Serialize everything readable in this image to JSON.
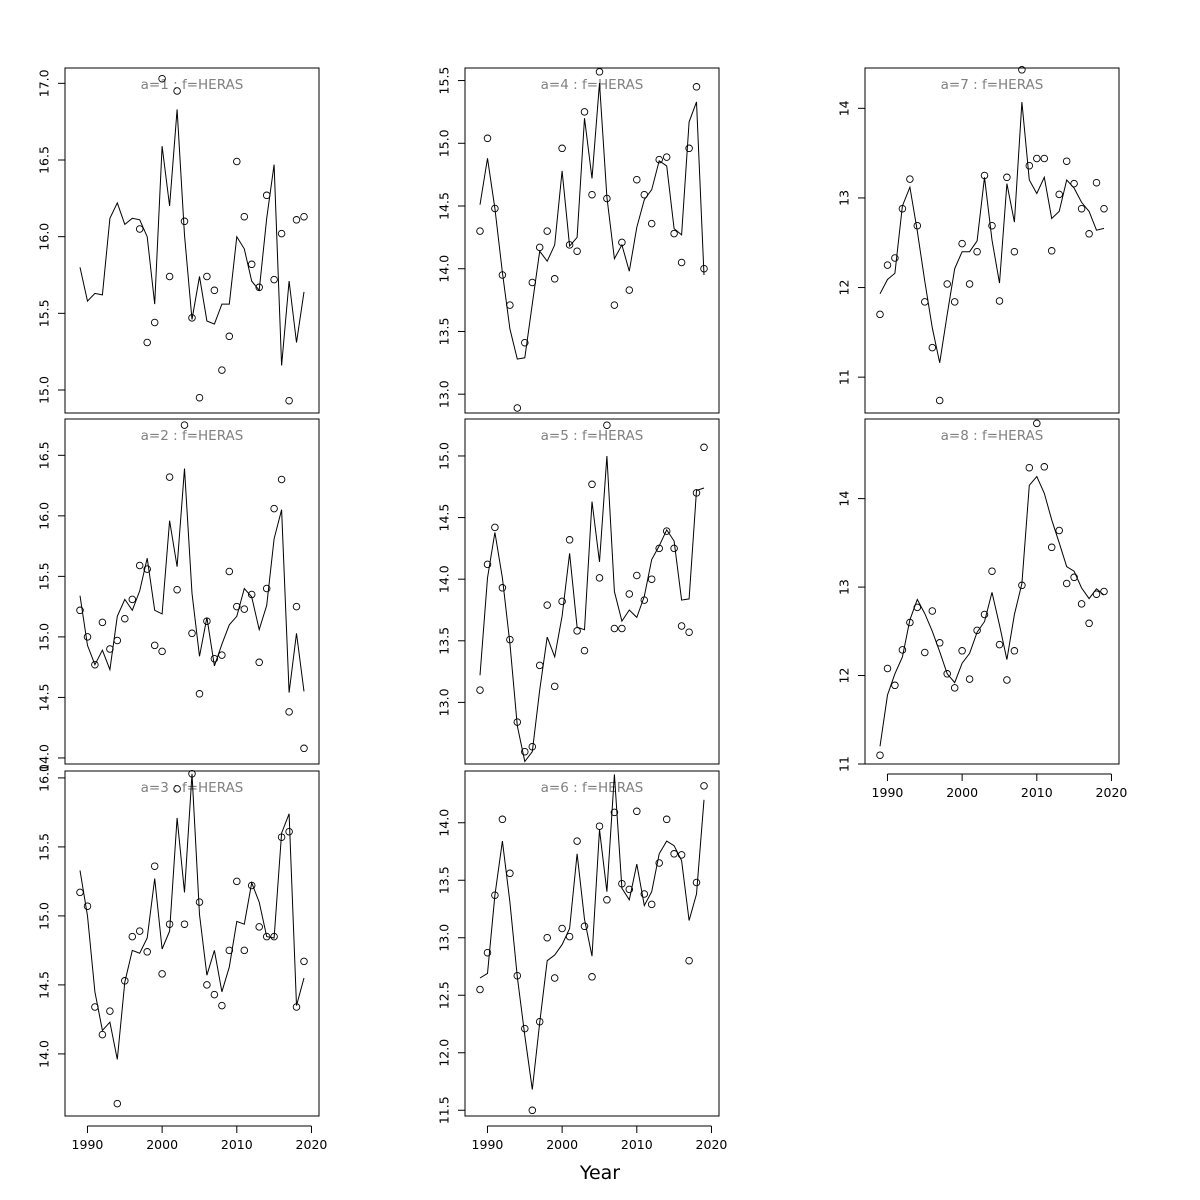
{
  "figure": {
    "xlabel": "Year",
    "x_ticks": [
      1990,
      2000,
      2010,
      2020
    ],
    "xlim": [
      1989,
      2019
    ]
  },
  "chart_data": [
    {
      "type": "scatter",
      "panel_label": "a=1 : f=HERAS",
      "years": [
        1989,
        1990,
        1991,
        1992,
        1993,
        1994,
        1995,
        1996,
        1997,
        1998,
        1999,
        2000,
        2001,
        2002,
        2003,
        2004,
        2005,
        2006,
        2007,
        2008,
        2009,
        2010,
        2011,
        2012,
        2013,
        2014,
        2015,
        2016,
        2017,
        2018,
        2019
      ],
      "observed": [
        null,
        null,
        null,
        null,
        null,
        null,
        null,
        null,
        16.05,
        15.31,
        15.44,
        17.03,
        15.74,
        16.95,
        16.1,
        15.47,
        14.95,
        15.74,
        15.65,
        15.13,
        15.35,
        16.49,
        16.13,
        15.82,
        15.67,
        16.27,
        15.72,
        16.02,
        14.93,
        16.11,
        16.13
      ],
      "fitted": [
        15.8,
        15.58,
        15.63,
        15.62,
        16.12,
        16.22,
        16.08,
        16.12,
        16.11,
        16.0,
        15.56,
        16.59,
        16.2,
        16.83,
        16.01,
        15.46,
        15.74,
        15.45,
        15.43,
        15.56,
        15.56,
        16.0,
        15.92,
        15.71,
        15.65,
        16.12,
        16.47,
        15.16,
        15.71,
        15.31,
        15.64
      ],
      "y_ticks": [
        15.0,
        15.5,
        16.0,
        16.5,
        17.0
      ],
      "y_tick_labels": [
        "15.0",
        "15.5",
        "16.0",
        "16.5",
        "17.0"
      ],
      "ylim": [
        14.85,
        17.1
      ]
    },
    {
      "type": "scatter",
      "panel_label": "a=2 : f=HERAS",
      "years": [
        1989,
        1990,
        1991,
        1992,
        1993,
        1994,
        1995,
        1996,
        1997,
        1998,
        1999,
        2000,
        2001,
        2002,
        2003,
        2004,
        2005,
        2006,
        2007,
        2008,
        2009,
        2010,
        2011,
        2012,
        2013,
        2014,
        2015,
        2016,
        2017,
        2018,
        2019
      ],
      "observed": [
        15.22,
        15.0,
        14.77,
        15.12,
        14.9,
        14.97,
        15.15,
        15.31,
        15.59,
        15.56,
        14.93,
        14.88,
        16.32,
        15.39,
        16.75,
        15.03,
        14.53,
        15.13,
        14.82,
        14.85,
        15.54,
        15.25,
        15.23,
        15.35,
        14.79,
        15.4,
        16.06,
        16.3,
        14.38,
        15.25,
        14.08
      ],
      "fitted": [
        15.34,
        14.93,
        14.77,
        14.89,
        14.73,
        15.17,
        15.31,
        15.22,
        15.38,
        15.65,
        15.22,
        15.19,
        15.96,
        15.58,
        16.39,
        15.36,
        14.84,
        15.16,
        14.76,
        14.94,
        15.1,
        15.17,
        15.4,
        15.33,
        15.06,
        15.26,
        15.81,
        16.05,
        14.54,
        15.03,
        14.55
      ],
      "y_ticks": [
        14.0,
        14.5,
        15.0,
        15.5,
        16.0,
        16.5
      ],
      "y_tick_labels": [
        "14.0",
        "14.5",
        "15.0",
        "15.5",
        "16.0",
        "16.5"
      ],
      "ylim": [
        13.95,
        16.8
      ]
    },
    {
      "type": "scatter",
      "panel_label": "a=3 : f=HERAS",
      "years": [
        1989,
        1990,
        1991,
        1992,
        1993,
        1994,
        1995,
        1996,
        1997,
        1998,
        1999,
        2000,
        2001,
        2002,
        2003,
        2004,
        2005,
        2006,
        2007,
        2008,
        2009,
        2010,
        2011,
        2012,
        2013,
        2014,
        2015,
        2016,
        2017,
        2018,
        2019
      ],
      "observed": [
        15.17,
        15.07,
        14.34,
        14.14,
        14.31,
        13.64,
        14.53,
        14.85,
        14.89,
        14.74,
        15.36,
        14.58,
        14.94,
        15.92,
        14.94,
        16.03,
        15.1,
        14.5,
        14.43,
        14.35,
        14.75,
        15.25,
        14.75,
        15.22,
        14.92,
        14.85,
        14.85,
        15.57,
        15.61,
        14.34,
        14.67
      ],
      "fitted": [
        15.33,
        15.0,
        14.45,
        14.17,
        14.23,
        13.96,
        14.52,
        14.75,
        14.73,
        14.84,
        15.27,
        14.76,
        14.89,
        15.71,
        15.17,
        16.03,
        15.01,
        14.57,
        14.75,
        14.45,
        14.63,
        14.96,
        14.94,
        15.24,
        15.1,
        14.85,
        14.84,
        15.6,
        15.74,
        14.35,
        14.55
      ],
      "y_ticks": [
        14.0,
        14.5,
        15.0,
        15.5,
        16.0
      ],
      "y_tick_labels": [
        "14.0",
        "14.5",
        "15.0",
        "15.5",
        "16.0"
      ],
      "ylim": [
        13.55,
        16.05
      ]
    },
    {
      "type": "scatter",
      "panel_label": "a=4 : f=HERAS",
      "years": [
        1989,
        1990,
        1991,
        1992,
        1993,
        1994,
        1995,
        1996,
        1997,
        1998,
        1999,
        2000,
        2001,
        2002,
        2003,
        2004,
        2005,
        2006,
        2007,
        2008,
        2009,
        2010,
        2011,
        2012,
        2013,
        2014,
        2015,
        2016,
        2017,
        2018,
        2019
      ],
      "observed": [
        14.3,
        15.04,
        14.48,
        13.95,
        13.71,
        12.89,
        13.41,
        13.89,
        14.17,
        14.3,
        13.92,
        14.96,
        14.19,
        14.14,
        15.25,
        14.59,
        15.57,
        14.56,
        13.71,
        14.21,
        13.83,
        14.71,
        14.59,
        14.36,
        14.87,
        14.89,
        14.28,
        14.05,
        14.96,
        15.45,
        14.0
      ],
      "fitted": [
        14.51,
        14.88,
        14.48,
        13.97,
        13.52,
        13.28,
        13.29,
        13.72,
        14.14,
        14.06,
        14.19,
        14.78,
        14.18,
        14.25,
        15.2,
        14.72,
        15.48,
        14.57,
        14.08,
        14.19,
        13.98,
        14.33,
        14.55,
        14.63,
        14.86,
        14.82,
        14.32,
        14.27,
        15.17,
        15.33,
        13.95
      ],
      "y_ticks": [
        13.0,
        13.5,
        14.0,
        14.5,
        15.0,
        15.5
      ],
      "y_tick_labels": [
        "13.0",
        "13.5",
        "14.0",
        "14.5",
        "15.0",
        "15.5"
      ],
      "ylim": [
        12.85,
        15.6
      ]
    },
    {
      "type": "scatter",
      "panel_label": "a=5 : f=HERAS",
      "years": [
        1989,
        1990,
        1991,
        1992,
        1993,
        1994,
        1995,
        1996,
        1997,
        1998,
        1999,
        2000,
        2001,
        2002,
        2003,
        2004,
        2005,
        2006,
        2007,
        2008,
        2009,
        2010,
        2011,
        2012,
        2013,
        2014,
        2015,
        2016,
        2017,
        2018,
        2019
      ],
      "observed": [
        13.1,
        14.12,
        14.42,
        13.93,
        13.51,
        12.84,
        12.6,
        12.64,
        13.3,
        13.79,
        13.13,
        13.82,
        14.32,
        13.58,
        13.42,
        14.77,
        14.01,
        15.25,
        13.6,
        13.6,
        13.88,
        14.03,
        13.83,
        14.0,
        14.25,
        14.39,
        14.25,
        13.62,
        13.57,
        14.7,
        15.07
      ],
      "fitted": [
        13.22,
        14.01,
        14.38,
        14.01,
        13.48,
        12.81,
        12.52,
        12.6,
        13.1,
        13.53,
        13.37,
        13.7,
        14.21,
        13.61,
        13.59,
        14.63,
        14.14,
        15.0,
        13.9,
        13.66,
        13.75,
        13.69,
        13.86,
        14.16,
        14.27,
        14.4,
        14.31,
        13.83,
        13.84,
        14.72,
        14.74
      ],
      "y_ticks": [
        13.0,
        13.5,
        14.0,
        14.5,
        15.0
      ],
      "y_tick_labels": [
        "13.0",
        "13.5",
        "14.0",
        "14.5",
        "15.0"
      ],
      "ylim": [
        12.5,
        15.3
      ]
    },
    {
      "type": "scatter",
      "panel_label": "a=6 : f=HERAS",
      "years": [
        1989,
        1990,
        1991,
        1992,
        1993,
        1994,
        1995,
        1996,
        1997,
        1998,
        1999,
        2000,
        2001,
        2002,
        2003,
        2004,
        2005,
        2006,
        2007,
        2008,
        2009,
        2010,
        2011,
        2012,
        2013,
        2014,
        2015,
        2016,
        2017,
        2018,
        2019
      ],
      "observed": [
        12.55,
        12.87,
        13.37,
        14.03,
        13.56,
        12.67,
        12.21,
        11.5,
        12.27,
        13.0,
        12.65,
        13.08,
        13.01,
        13.84,
        13.1,
        12.66,
        13.97,
        13.33,
        14.09,
        13.47,
        13.42,
        14.1,
        13.38,
        13.29,
        13.65,
        14.03,
        13.73,
        13.72,
        12.8,
        13.48,
        14.32
      ],
      "fitted": [
        12.65,
        12.69,
        13.37,
        13.84,
        13.31,
        12.66,
        12.15,
        11.68,
        12.26,
        12.8,
        12.85,
        12.94,
        13.08,
        13.73,
        13.16,
        12.84,
        13.94,
        13.4,
        14.42,
        13.43,
        13.33,
        13.64,
        13.28,
        13.4,
        13.73,
        13.84,
        13.8,
        13.67,
        13.15,
        13.38,
        14.2
      ],
      "y_ticks": [
        11.5,
        12.0,
        12.5,
        13.0,
        13.5,
        14.0
      ],
      "y_tick_labels": [
        "11.5",
        "12.0",
        "12.5",
        "13.0",
        "13.5",
        "14.0"
      ],
      "ylim": [
        11.45,
        14.45
      ]
    },
    {
      "type": "scatter",
      "panel_label": "a=7 : f=HERAS",
      "years": [
        1989,
        1990,
        1991,
        1992,
        1993,
        1994,
        1995,
        1996,
        1997,
        1998,
        1999,
        2000,
        2001,
        2002,
        2003,
        2004,
        2005,
        2006,
        2007,
        2008,
        2009,
        2010,
        2011,
        2012,
        2013,
        2014,
        2015,
        2016,
        2017,
        2018,
        2019
      ],
      "observed": [
        11.7,
        12.25,
        12.33,
        12.88,
        13.21,
        12.69,
        11.84,
        11.33,
        10.74,
        12.04,
        11.84,
        12.49,
        12.04,
        12.4,
        13.25,
        12.69,
        11.85,
        13.23,
        12.4,
        14.43,
        13.36,
        13.44,
        13.44,
        12.41,
        13.04,
        13.41,
        13.16,
        12.88,
        12.6,
        13.17,
        12.88
      ],
      "fitted": [
        11.93,
        12.09,
        12.16,
        12.91,
        13.12,
        12.63,
        12.07,
        11.55,
        11.16,
        11.7,
        12.21,
        12.4,
        12.4,
        12.52,
        13.23,
        12.53,
        12.05,
        13.16,
        12.73,
        14.07,
        13.2,
        13.05,
        13.23,
        12.77,
        12.85,
        13.2,
        13.11,
        12.95,
        12.85,
        12.64,
        12.66
      ],
      "y_ticks": [
        11,
        12,
        13,
        14
      ],
      "y_tick_labels": [
        "11",
        "12",
        "13",
        "14"
      ],
      "ylim": [
        10.6,
        14.45
      ]
    },
    {
      "type": "scatter",
      "panel_label": "a=8 : f=HERAS",
      "years": [
        1989,
        1990,
        1991,
        1992,
        1993,
        1994,
        1995,
        1996,
        1997,
        1998,
        1999,
        2000,
        2001,
        2002,
        2003,
        2004,
        2005,
        2006,
        2007,
        2008,
        2009,
        2010,
        2011,
        2012,
        2013,
        2014,
        2015,
        2016,
        2017,
        2018,
        2019
      ],
      "observed": [
        11.1,
        12.08,
        11.89,
        12.29,
        12.6,
        12.77,
        12.26,
        12.73,
        12.37,
        12.02,
        11.86,
        12.28,
        11.96,
        12.51,
        12.69,
        13.18,
        12.35,
        11.95,
        12.28,
        13.02,
        14.35,
        14.85,
        14.36,
        13.45,
        13.64,
        13.04,
        13.11,
        12.81,
        12.59,
        12.92,
        12.95
      ],
      "fitted": [
        11.2,
        11.78,
        12.02,
        12.21,
        12.63,
        12.86,
        12.7,
        12.5,
        12.27,
        12.02,
        11.92,
        12.14,
        12.25,
        12.49,
        12.61,
        12.94,
        12.57,
        12.18,
        12.69,
        13.04,
        14.15,
        14.25,
        14.06,
        13.76,
        13.5,
        13.23,
        13.18,
        12.99,
        12.87,
        12.98,
        12.91
      ],
      "y_ticks": [
        11,
        12,
        13,
        14
      ],
      "y_tick_labels": [
        "11",
        "12",
        "13",
        "14"
      ],
      "ylim": [
        11.0,
        14.9
      ]
    }
  ]
}
